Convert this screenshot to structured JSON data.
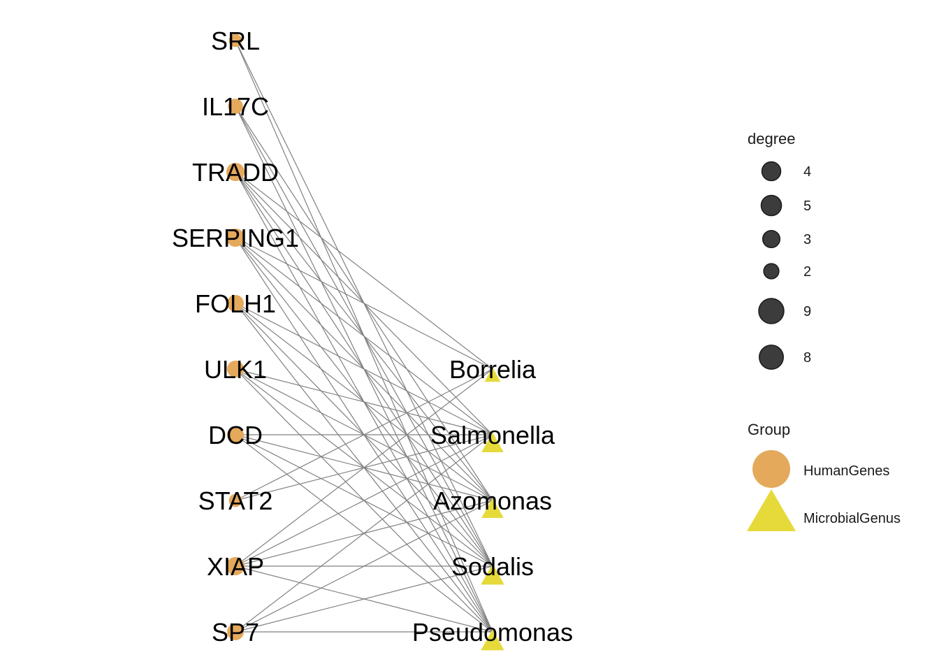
{
  "colors": {
    "human": "#E5A95C",
    "microbe": "#E5DA3A",
    "edge": "#808080",
    "legend_circle": "#3c3c3c"
  },
  "nodes": {
    "human": [
      "SRL",
      "IL17C",
      "TRADD",
      "SERPING1",
      "FOLH1",
      "ULK1",
      "DCD",
      "STAT2",
      "XIAP",
      "SP7"
    ],
    "microbe": [
      "Borrelia",
      "Salmonella",
      "Azomonas",
      "Sodalis",
      "Pseudomonas"
    ]
  },
  "node_degree": {
    "SRL": 2,
    "IL17C": 3,
    "TRADD": 5,
    "SERPING1": 5,
    "FOLH1": 4,
    "ULK1": 4,
    "DCD": 4,
    "STAT2": 2,
    "XIAP": 5,
    "SP7": 4,
    "Borrelia": 4,
    "Salmonella": 8,
    "Azomonas": 8,
    "Sodalis": 9,
    "Pseudomonas": 9
  },
  "edges": [
    [
      "SRL",
      "Sodalis"
    ],
    [
      "SRL",
      "Pseudomonas"
    ],
    [
      "IL17C",
      "Azomonas"
    ],
    [
      "IL17C",
      "Sodalis"
    ],
    [
      "IL17C",
      "Pseudomonas"
    ],
    [
      "TRADD",
      "Borrelia"
    ],
    [
      "TRADD",
      "Salmonella"
    ],
    [
      "TRADD",
      "Azomonas"
    ],
    [
      "TRADD",
      "Sodalis"
    ],
    [
      "TRADD",
      "Pseudomonas"
    ],
    [
      "SERPING1",
      "Borrelia"
    ],
    [
      "SERPING1",
      "Salmonella"
    ],
    [
      "SERPING1",
      "Azomonas"
    ],
    [
      "SERPING1",
      "Sodalis"
    ],
    [
      "SERPING1",
      "Pseudomonas"
    ],
    [
      "FOLH1",
      "Salmonella"
    ],
    [
      "FOLH1",
      "Azomonas"
    ],
    [
      "FOLH1",
      "Sodalis"
    ],
    [
      "FOLH1",
      "Pseudomonas"
    ],
    [
      "ULK1",
      "Salmonella"
    ],
    [
      "ULK1",
      "Azomonas"
    ],
    [
      "ULK1",
      "Sodalis"
    ],
    [
      "ULK1",
      "Pseudomonas"
    ],
    [
      "DCD",
      "Salmonella"
    ],
    [
      "DCD",
      "Azomonas"
    ],
    [
      "DCD",
      "Sodalis"
    ],
    [
      "DCD",
      "Pseudomonas"
    ],
    [
      "STAT2",
      "Borrelia"
    ],
    [
      "STAT2",
      "Salmonella"
    ],
    [
      "XIAP",
      "Borrelia"
    ],
    [
      "XIAP",
      "Salmonella"
    ],
    [
      "XIAP",
      "Azomonas"
    ],
    [
      "XIAP",
      "Sodalis"
    ],
    [
      "XIAP",
      "Pseudomonas"
    ],
    [
      "SP7",
      "Salmonella"
    ],
    [
      "SP7",
      "Azomonas"
    ],
    [
      "SP7",
      "Sodalis"
    ],
    [
      "SP7",
      "Pseudomonas"
    ]
  ],
  "legend": {
    "degree_title": "degree",
    "degree_items": [
      "4",
      "5",
      "3",
      "2",
      "9",
      "8"
    ],
    "group_title": "Group",
    "group_items": [
      "HumanGenes",
      "MicrobialGenus"
    ]
  }
}
